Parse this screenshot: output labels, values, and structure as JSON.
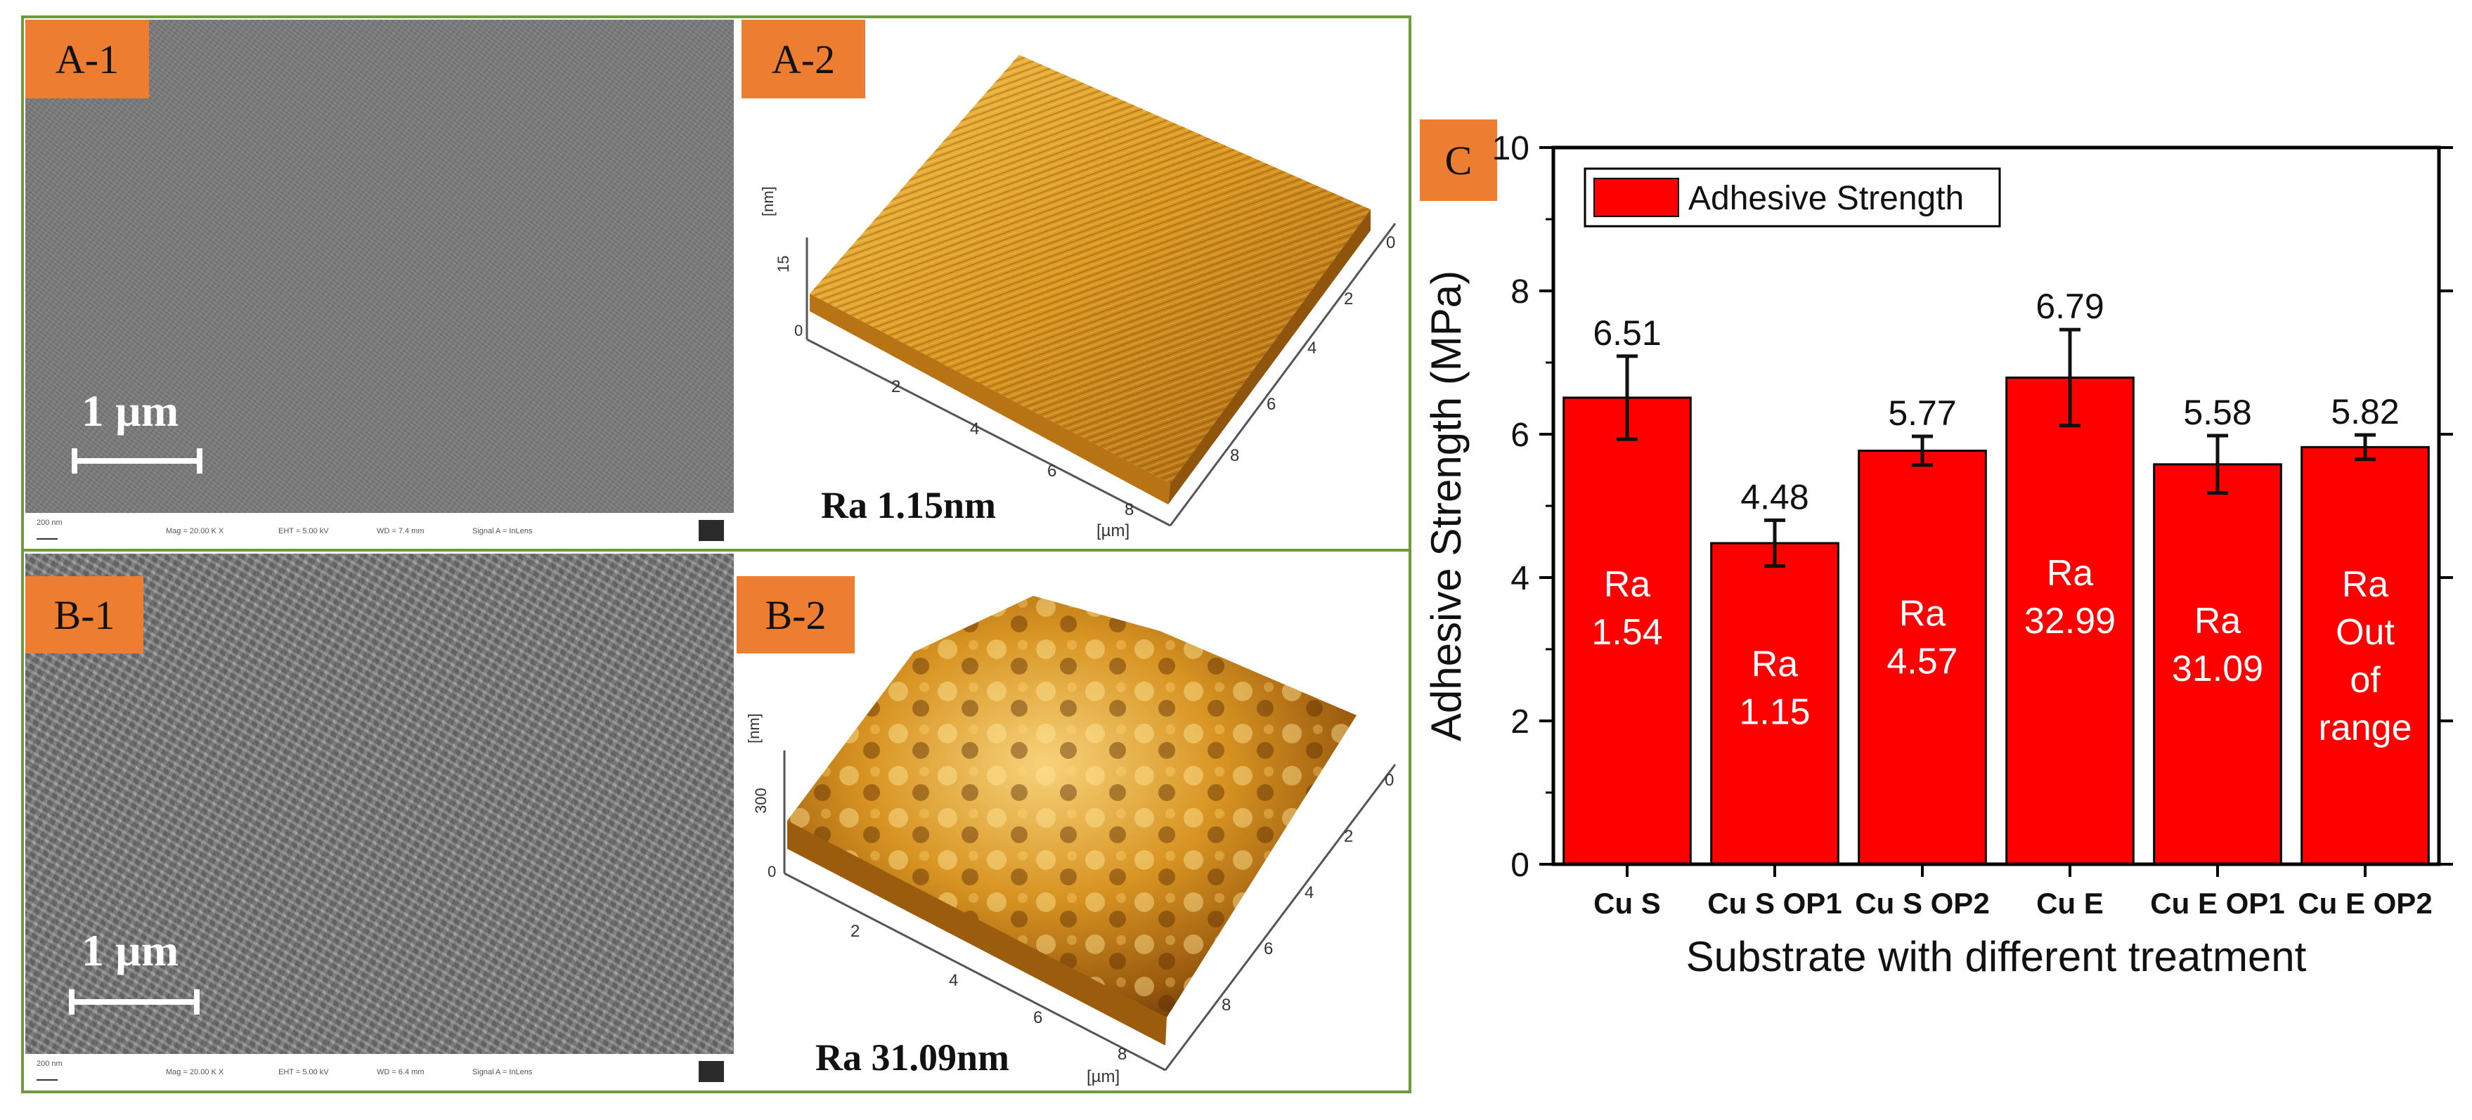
{
  "panels": {
    "a1": {
      "tag": "A-1",
      "scale": "1 µm"
    },
    "a2": {
      "tag": "A-2",
      "ra": "Ra 1.15nm",
      "z_unit": "[nm]",
      "z_ticks": [
        "0",
        "15"
      ],
      "xy_unit": "[µm]",
      "x_ticks": [
        "2",
        "4",
        "6",
        "8"
      ],
      "y_ticks": [
        "0",
        "2",
        "4",
        "6",
        "8"
      ]
    },
    "b1": {
      "tag": "B-1",
      "scale": "1 µm"
    },
    "b2": {
      "tag": "B-2",
      "ra": "Ra 31.09nm",
      "z_unit": "[nm]",
      "z_ticks": [
        "0",
        "300"
      ],
      "xy_unit": "[µm]",
      "x_ticks": [
        "2",
        "4",
        "6",
        "8"
      ],
      "y_ticks": [
        "0",
        "2",
        "4",
        "6",
        "8"
      ]
    },
    "c": {
      "tag": "C"
    }
  },
  "sem_info": {
    "a": {
      "scale_small": "200 nm",
      "mag": "Mag = 20.00 K X",
      "eht": "EHT = 5.00 kV",
      "wd": "WD = 7.4 mm",
      "signal": "Signal A = InLens"
    },
    "b": {
      "scale_small": "200 nm",
      "mag": "Mag = 20.00 K X",
      "eht": "EHT = 5.00 kV",
      "wd": "WD = 6.4 mm",
      "signal": "Signal A = InLens"
    }
  },
  "colors": {
    "bar": "#ff0000",
    "tag": "#ed7d31",
    "frame": "#6f9b3c"
  },
  "chart_data": {
    "type": "bar",
    "title": "",
    "xlabel": "Substrate with different treatment",
    "ylabel": "Adhesive Strength (MPa)",
    "ylim": [
      0,
      10
    ],
    "yticks": [
      0,
      2,
      4,
      6,
      8,
      10
    ],
    "categories": [
      "Cu S",
      "Cu S OP1",
      "Cu S OP2",
      "Cu E",
      "Cu E OP1",
      "Cu E OP2"
    ],
    "legend": "Adhesive Strength",
    "series": [
      {
        "name": "Adhesive Strength",
        "values": [
          6.51,
          4.48,
          5.77,
          6.79,
          5.58,
          5.82
        ],
        "value_labels": [
          "6.51",
          "4.48",
          "5.77",
          "6.79",
          "5.58",
          "5.82"
        ],
        "error": [
          0.58,
          0.32,
          0.2,
          0.67,
          0.4,
          0.17
        ],
        "inner_labels": [
          [
            "Ra",
            "1.54"
          ],
          [
            "Ra",
            "1.15"
          ],
          [
            "Ra",
            "4.57"
          ],
          [
            "Ra",
            "32.99"
          ],
          [
            "Ra",
            "31.09"
          ],
          [
            "Ra",
            "Out",
            "of",
            "range"
          ]
        ]
      }
    ]
  }
}
